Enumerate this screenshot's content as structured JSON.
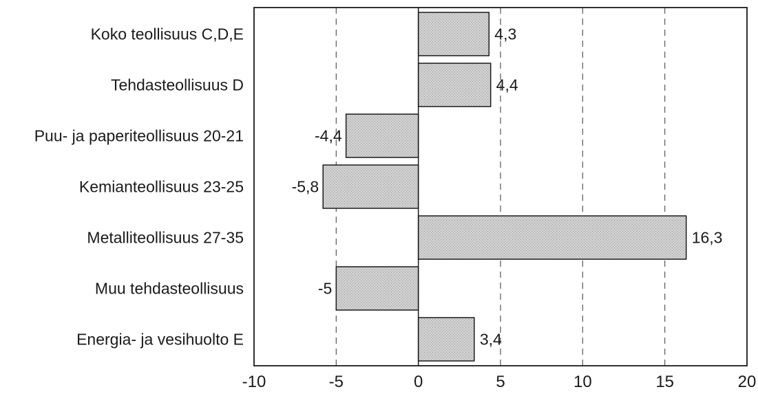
{
  "chart_data": {
    "type": "bar",
    "orientation": "horizontal",
    "categories": [
      "Koko teollisuus C,D,E",
      "Tehdasteollisuus D",
      "Puu- ja paperiteollisuus 20-21",
      "Kemianteollisuus 23-25",
      "Metalliteollisuus 27-35",
      "Muu tehdasteollisuus",
      "Energia- ja vesihuolto E"
    ],
    "values": [
      4.3,
      4.4,
      -4.4,
      -5.8,
      16.3,
      -5,
      3.4
    ],
    "value_labels": [
      "4,3",
      "4,4",
      "-4,4",
      "-5,8",
      "16,3",
      "-5",
      "3,4"
    ],
    "xlim": [
      -10,
      20
    ],
    "xticks": [
      -10,
      -5,
      0,
      5,
      10,
      15,
      20
    ],
    "xtick_labels": [
      "-10",
      "-5",
      "0",
      "5",
      "10",
      "15",
      "20"
    ],
    "title": "",
    "xlabel": "",
    "ylabel": "",
    "grid": "vertical dashed lines",
    "legend": "none",
    "colors": {
      "bar_fill": "#c8c8c8",
      "bar_stroke": "#1a1a1a",
      "grid": "#555555",
      "axis": "#1a1a1a"
    }
  }
}
